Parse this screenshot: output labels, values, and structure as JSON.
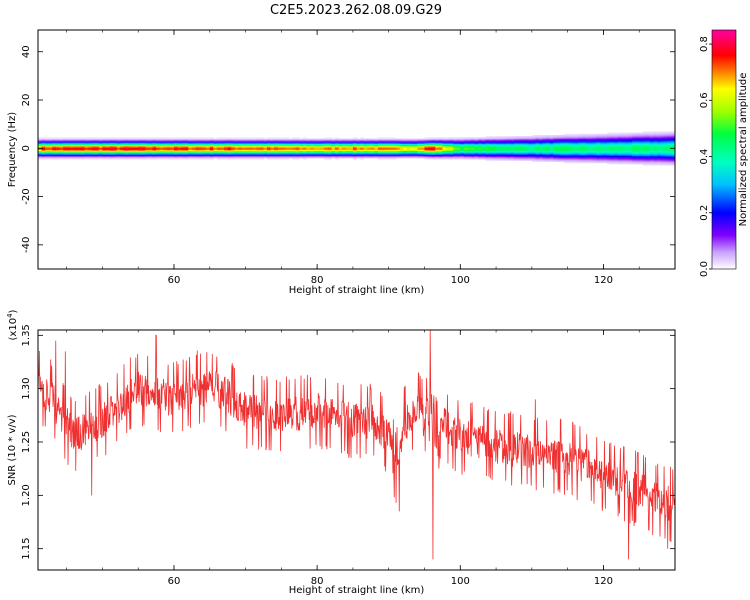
{
  "title": "C2E5.2023.262.08.09.G29",
  "colors": {
    "snr_line": "#f03030",
    "frame": "#000000"
  },
  "chart_data": [
    {
      "type": "heatmap",
      "xlabel": "Height of straight line (km)",
      "ylabel": "Frequency (Hz)",
      "xlim": [
        41,
        130
      ],
      "ylim": [
        -50,
        49
      ],
      "x_ticks": [
        60,
        80,
        100,
        120
      ],
      "y_ticks": [
        -40,
        -20,
        0,
        20,
        40
      ],
      "band_center_hz": 0,
      "band_halfwidth_hz": 3,
      "colorbar": {
        "label": "Normalized spectral amplitude",
        "range": [
          0.0,
          0.85
        ],
        "ticks": [
          0.0,
          0.2,
          0.4,
          0.6,
          0.8
        ],
        "tick_labels": [
          "0.0",
          "0.2",
          "0.4",
          "0.6",
          "0.8"
        ],
        "stops": [
          {
            "v": 0.0,
            "color": "#ffffff"
          },
          {
            "v": 0.06,
            "color": "#c9a0ff"
          },
          {
            "v": 0.12,
            "color": "#8000ff"
          },
          {
            "v": 0.2,
            "color": "#0000ff"
          },
          {
            "v": 0.3,
            "color": "#00c0ff"
          },
          {
            "v": 0.38,
            "color": "#00ffc0"
          },
          {
            "v": 0.48,
            "color": "#00ff40"
          },
          {
            "v": 0.56,
            "color": "#a0ff00"
          },
          {
            "v": 0.64,
            "color": "#ffff00"
          },
          {
            "v": 0.7,
            "color": "#ff8000"
          },
          {
            "v": 0.76,
            "color": "#ff0000"
          },
          {
            "v": 0.85,
            "color": "#ff00a0"
          }
        ]
      },
      "peak_amplitude_profile": {
        "x": [
          41,
          50,
          60,
          70,
          80,
          85,
          90,
          94,
          96,
          98,
          100,
          105,
          110,
          115,
          120,
          125,
          130
        ],
        "amplitude": [
          0.76,
          0.78,
          0.76,
          0.74,
          0.7,
          0.72,
          0.7,
          0.68,
          0.8,
          0.64,
          0.52,
          0.48,
          0.45,
          0.46,
          0.44,
          0.45,
          0.44
        ]
      }
    },
    {
      "type": "line",
      "xlabel": "Height of straight line (km)",
      "ylabel": "SNR (10 * v/v)",
      "y_exponent_label": "(x10",
      "y_exponent": "4",
      "y_exponent_close": ")",
      "xlim": [
        41,
        130
      ],
      "ylim": [
        1.13,
        1.355
      ],
      "x_ticks": [
        60,
        80,
        100,
        120
      ],
      "y_ticks": [
        1.15,
        1.2,
        1.25,
        1.3,
        1.35
      ],
      "y_tick_labels": [
        "1.15",
        "1.20",
        "1.25",
        "1.30",
        "1.35"
      ],
      "trend": {
        "x": [
          41,
          43,
          46,
          50,
          55,
          60,
          63,
          66,
          70,
          75,
          80,
          85,
          88,
          90,
          91,
          92,
          94,
          95,
          96,
          97,
          99,
          100,
          103,
          106,
          110,
          115,
          120,
          125,
          128,
          130
        ],
        "y": [
          1.305,
          1.29,
          1.255,
          1.27,
          1.3,
          1.29,
          1.3,
          1.3,
          1.28,
          1.275,
          1.28,
          1.27,
          1.27,
          1.255,
          1.225,
          1.265,
          1.28,
          1.27,
          1.29,
          1.27,
          1.26,
          1.255,
          1.25,
          1.245,
          1.24,
          1.235,
          1.22,
          1.205,
          1.195,
          1.19
        ]
      },
      "noise_amplitude": 0.02,
      "spikes": [
        {
          "x": 43.5,
          "y": 1.345
        },
        {
          "x": 44.8,
          "y": 1.335
        },
        {
          "x": 48.5,
          "y": 1.2
        },
        {
          "x": 57.5,
          "y": 1.35
        },
        {
          "x": 66.0,
          "y": 1.33
        },
        {
          "x": 87.5,
          "y": 1.3
        },
        {
          "x": 91.5,
          "y": 1.185
        },
        {
          "x": 95.8,
          "y": 1.355
        },
        {
          "x": 96.2,
          "y": 1.14
        },
        {
          "x": 97.0,
          "y": 1.225
        },
        {
          "x": 110.5,
          "y": 1.29
        },
        {
          "x": 123.5,
          "y": 1.14
        },
        {
          "x": 129.0,
          "y": 1.15
        }
      ]
    }
  ]
}
